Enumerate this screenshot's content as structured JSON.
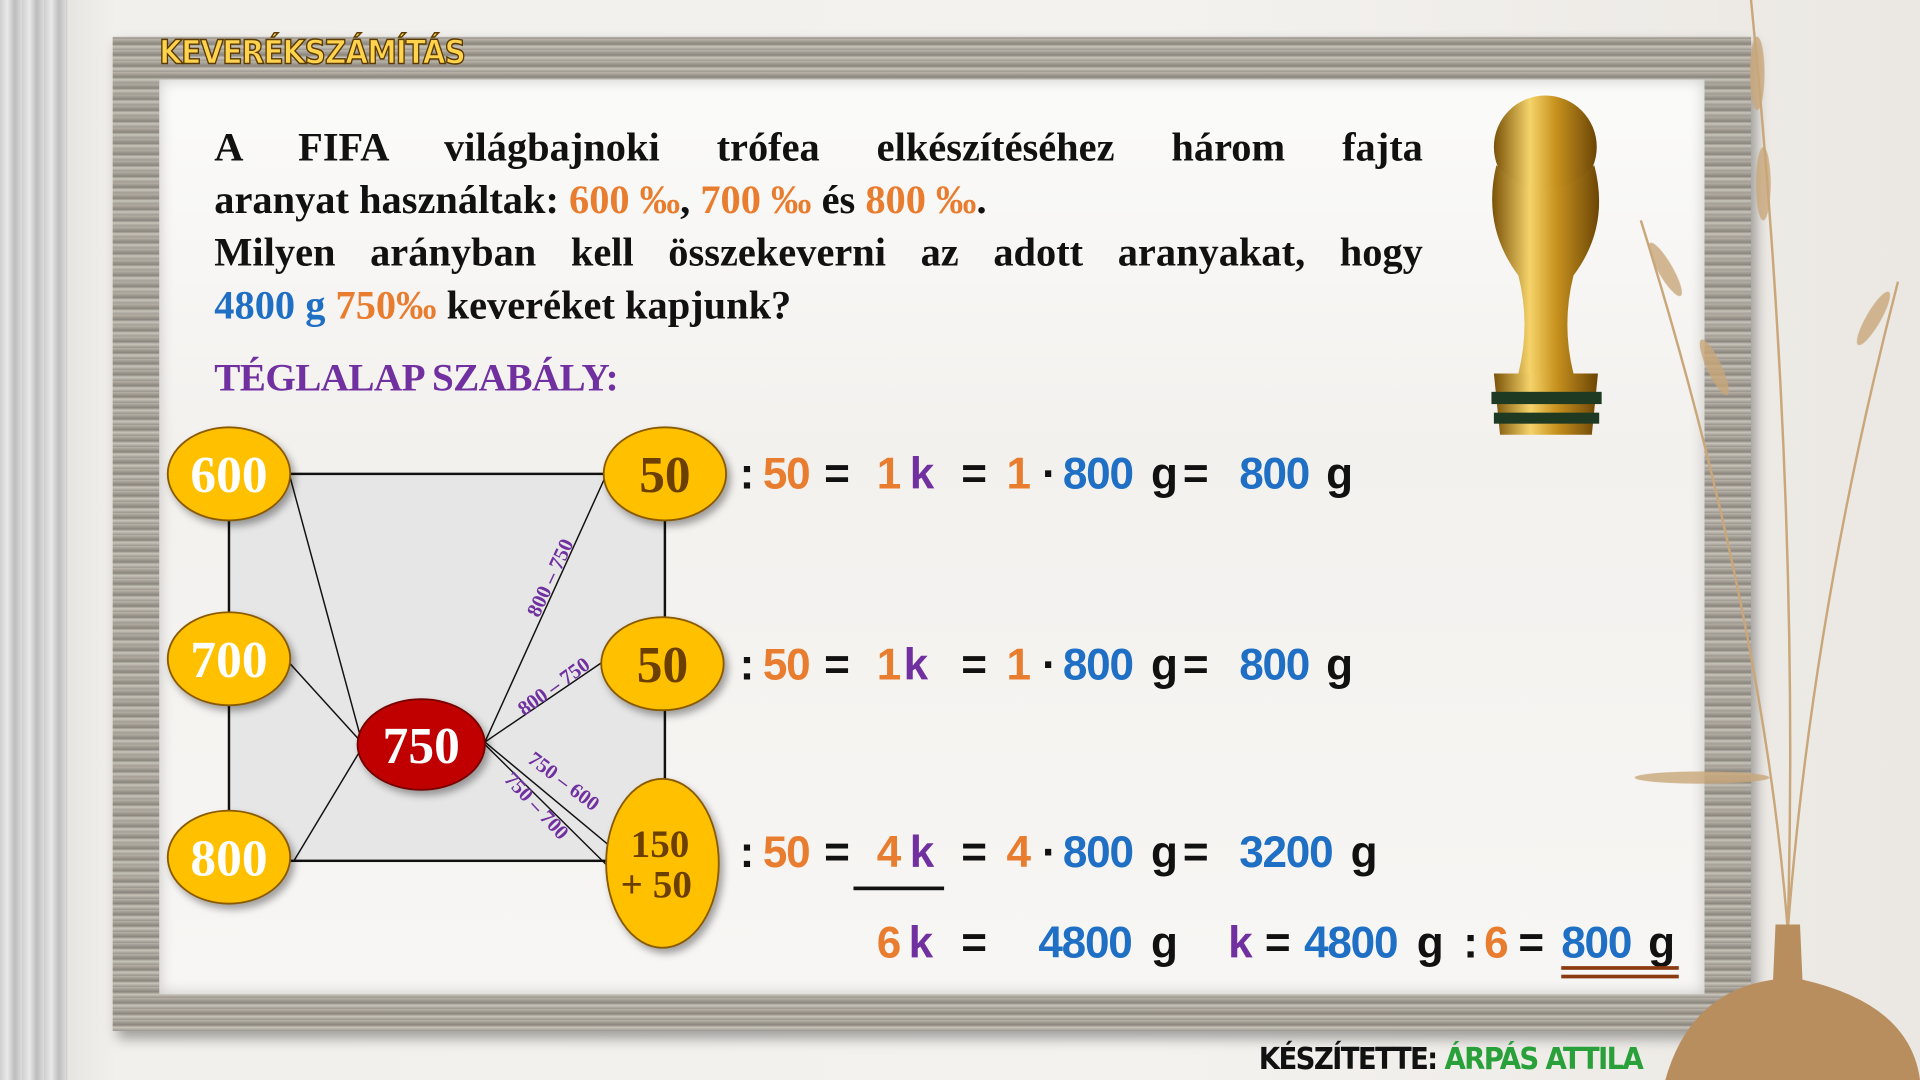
{
  "title": "KEVERÉKSZÁMÍTÁS",
  "question": {
    "l1": "A FIFA világbajnoki trófea elkészítéséhez három fajta",
    "l2_a": "aranyat használtak:",
    "v1": "600 ‰",
    "sep1": ",",
    "v2": "700 ‰",
    "and": "és",
    "v3": "800 ‰",
    "dot": ".",
    "l3": "Milyen arányban kell összekeverni az adott aranyakat, hogy",
    "mass": "4800 g",
    "target": "750‰",
    "l4_end": "keveréket kapjunk?"
  },
  "rule_title": "TÉGLALAP SZABÁLY:",
  "diagram": {
    "inputs": [
      "600",
      "700",
      "800"
    ],
    "target": "750",
    "parts": [
      "50",
      "50",
      "150",
      "+ 50"
    ],
    "labels": [
      "800 – 750",
      "800 – 750",
      "750 – 600",
      "750 – 700"
    ]
  },
  "equations": {
    "rows": [
      [
        ":",
        "50",
        "=",
        "1",
        "k",
        "=",
        "1",
        "·",
        "800",
        "g",
        "=",
        "800",
        "g"
      ],
      [
        ":",
        "50",
        "=",
        "1",
        "k",
        "=",
        "1",
        "·",
        "800",
        "g",
        "=",
        "800",
        "g"
      ],
      [
        ":",
        "50",
        "=",
        "4",
        "k",
        "=",
        "4",
        "·",
        "800",
        "g",
        "=",
        "3200",
        "g"
      ],
      [
        "6",
        "k",
        "=",
        "4800",
        "g",
        "k",
        "=",
        "4800",
        "g",
        ":",
        "6",
        "=",
        "800",
        "g"
      ]
    ]
  },
  "author": {
    "label": "KÉSZÍTETTE:",
    "name": "ÁRPÁS ATTILA"
  },
  "colors": {
    "orange": "#e97d2f",
    "blue": "#1f6fc4",
    "purple": "#7030a0",
    "gold": "#ffc000",
    "red": "#c00000",
    "green": "#2aa03a"
  }
}
